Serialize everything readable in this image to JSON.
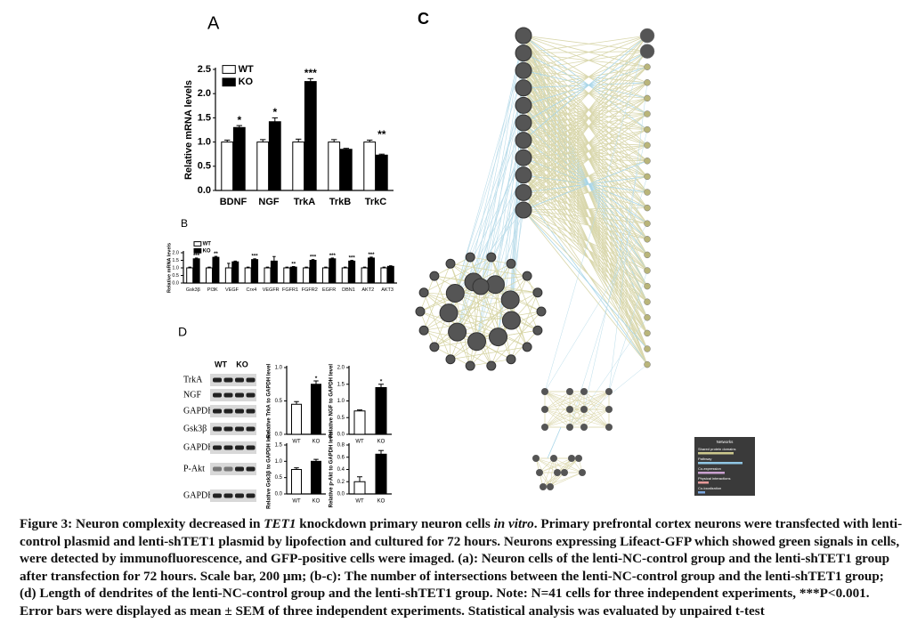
{
  "panel_labels": [
    "A",
    "B",
    "C",
    "D"
  ],
  "chart_data": [
    {
      "type": "bar",
      "y_label": "Relative mRNA levels",
      "categories": [
        "BDNF",
        "NGF",
        "TrkA",
        "TrkB",
        "TrkC"
      ],
      "series": [
        {
          "name": "WT",
          "color": "#ffffff",
          "values": [
            1.0,
            1.0,
            1.0,
            1.0,
            1.0
          ],
          "errors": [
            0.04,
            0.05,
            0.06,
            0.05,
            0.04
          ]
        },
        {
          "name": "KO",
          "color": "#000000",
          "values": [
            1.3,
            1.42,
            2.25,
            0.85,
            0.73
          ],
          "errors": [
            0.04,
            0.08,
            0.06,
            0.02,
            0.02
          ]
        }
      ],
      "significance": [
        "*",
        "*",
        "***",
        null,
        "**"
      ],
      "ylim": [
        0,
        2.5
      ],
      "yticks": [
        {
          "value": 0,
          "label": "0.0"
        },
        {
          "value": 0.5,
          "label": "0.5"
        },
        {
          "value": 1,
          "label": "1.0"
        },
        {
          "value": 1.5,
          "label": "1.5"
        },
        {
          "value": 2,
          "label": "2.0"
        },
        {
          "value": 2.5,
          "label": "2.5"
        }
      ]
    },
    {
      "type": "bar",
      "y_label": "Relative mRNA levels",
      "categories": [
        "Gsk3β",
        "PI3K",
        "VEGF",
        "Crx4",
        "VEGFR",
        "FGFR1",
        "FGFR2",
        "EGFR",
        "DBN1",
        "AKT2",
        "AKT3"
      ],
      "series": [
        {
          "name": "WT",
          "color": "#ffffff",
          "values": [
            1.0,
            1.0,
            1.0,
            1.0,
            1.0,
            1.0,
            1.0,
            1.0,
            1.0,
            1.0,
            1.0
          ],
          "errors": [
            0.05,
            0.05,
            0.3,
            0.05,
            0.05,
            0.05,
            0.05,
            0.05,
            0.05,
            0.05,
            0.05
          ]
        },
        {
          "name": "KO",
          "color": "#000000",
          "values": [
            1.6,
            1.7,
            1.4,
            1.55,
            1.45,
            1.05,
            1.5,
            1.6,
            1.45,
            1.65,
            1.1
          ],
          "errors": [
            0.05,
            0.06,
            0.05,
            0.05,
            0.3,
            0.04,
            0.05,
            0.05,
            0.05,
            0.06,
            0.04
          ]
        }
      ],
      "significance": [
        "***",
        "**",
        null,
        "***",
        null,
        "**",
        "***",
        "***",
        "***",
        "***",
        null
      ],
      "ylim": [
        0,
        2
      ],
      "yticks": [
        {
          "value": 0,
          "label": "0.0"
        },
        {
          "value": 0.5,
          "label": "0.5"
        },
        {
          "value": 1,
          "label": "1.0"
        },
        {
          "value": 1.5,
          "label": "1.5"
        },
        {
          "value": 2,
          "label": "2.0"
        }
      ]
    },
    {
      "type": "bar",
      "y_label": "Relative TrkA to GAPDH level",
      "categories": [
        "WT",
        "KO"
      ],
      "values": [
        0.45,
        0.75
      ],
      "errors": [
        0.04,
        0.05
      ],
      "colors": [
        "#ffffff",
        "#000000"
      ],
      "significance": [
        null,
        "*"
      ],
      "ylim": [
        0,
        1
      ],
      "yticks": [
        {
          "value": 0,
          "label": "0.0"
        },
        {
          "value": 0.5,
          "label": "0.5"
        },
        {
          "value": 1,
          "label": "1.0"
        }
      ]
    },
    {
      "type": "bar",
      "y_label": "Relative NGF to GAPDH level",
      "categories": [
        "WT",
        "KO"
      ],
      "values": [
        0.7,
        1.4
      ],
      "errors": [
        0.03,
        0.1
      ],
      "colors": [
        "#ffffff",
        "#000000"
      ],
      "significance": [
        null,
        "*"
      ],
      "ylim": [
        0,
        2
      ],
      "yticks": [
        {
          "value": 0,
          "label": "0.0"
        },
        {
          "value": 0.5,
          "label": "0.5"
        },
        {
          "value": 1,
          "label": "1.0"
        },
        {
          "value": 1.5,
          "label": "1.5"
        },
        {
          "value": 2,
          "label": "2.0"
        }
      ]
    },
    {
      "type": "bar",
      "y_label": "Relative Gsk3β to GAPDH level",
      "categories": [
        "WT",
        "KO"
      ],
      "values": [
        0.75,
        1.0
      ],
      "errors": [
        0.05,
        0.06
      ],
      "colors": [
        "#ffffff",
        "#000000"
      ],
      "ylim": [
        0,
        1.5
      ],
      "yticks": [
        {
          "value": 0,
          "label": "0.0"
        },
        {
          "value": 0.5,
          "label": "0.5"
        },
        {
          "value": 1,
          "label": "1.0"
        },
        {
          "value": 1.5,
          "label": "1.5"
        }
      ]
    },
    {
      "type": "bar",
      "y_label": "Relative p-Akt to GAPDH level",
      "categories": [
        "WT",
        "KO"
      ],
      "values": [
        0.2,
        0.65
      ],
      "errors": [
        0.08,
        0.06
      ],
      "colors": [
        "#ffffff",
        "#000000"
      ],
      "ylim": [
        0,
        0.8
      ],
      "yticks": [
        {
          "value": 0,
          "label": "0.0"
        },
        {
          "value": 0.2,
          "label": "0.2"
        },
        {
          "value": 0.4,
          "label": "0.4"
        },
        {
          "value": 0.6,
          "label": "0.6"
        },
        {
          "value": 0.8,
          "label": "0.8"
        }
      ]
    }
  ],
  "blot": {
    "columns": [
      "WT",
      "KO"
    ],
    "rows": [
      "TrkA",
      "NGF",
      "GAPDH",
      "Gsk3β",
      "GAPDH",
      "P-Akt",
      "GAPDH"
    ]
  },
  "network": {
    "legend_title": "Networks",
    "legend_items": [
      "Shared protein domains",
      "Pathway",
      "Co-expression",
      "Physical interactions",
      "Co-localization"
    ]
  },
  "caption": [
    "Figure 3: Neuron complexity decreased in ",
    "TET1",
    " knockdown primary neuron cells ",
    "in vitro",
    ". Primary prefrontal cortex neurons were transfected with lenti-control plasmid and lenti-shTET1 plasmid by lipofection and cultured for 72 hours. Neurons expressing Lifeact-GFP which showed green signals in cells, were detected by immunofluorescence, and GFP-positive cells were imaged. (a): Neuron cells of the lenti-NC-control group and the lenti-shTET1 group after transfection for 72 hours. Scale bar, 200 μm; (b-c): The number of intersections between the lenti-NC-control group and the lenti-shTET1 group; (d) Length of dendrites of the lenti-NC-control group and the lenti-shTET1 group. Note: N=41 cells for three independent experiments, ***P<0.001. Error bars were displayed as mean ± SEM of three independent experiments. Statistical analysis was evaluated by unpaired t-test"
  ]
}
